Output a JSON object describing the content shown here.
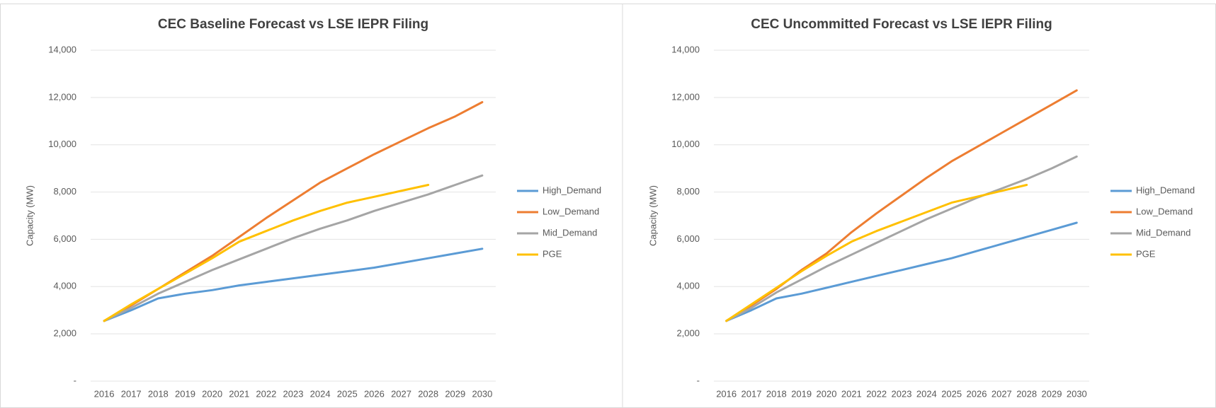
{
  "chart_data": [
    {
      "type": "line",
      "title": "CEC Baseline Forecast vs LSE IEPR Filing",
      "y_label": "Capacity (MW)",
      "categories": [
        "2016",
        "2017",
        "2018",
        "2019",
        "2020",
        "2021",
        "2022",
        "2023",
        "2024",
        "2025",
        "2026",
        "2027",
        "2028",
        "2029",
        "2030"
      ],
      "ylim": [
        0,
        14000
      ],
      "yticks": [
        {
          "value": 0,
          "label": "-"
        },
        {
          "value": 2000,
          "label": "2,000"
        },
        {
          "value": 4000,
          "label": "4,000"
        },
        {
          "value": 6000,
          "label": "6,000"
        },
        {
          "value": 8000,
          "label": "8,000"
        },
        {
          "value": 10000,
          "label": "10,000"
        },
        {
          "value": 12000,
          "label": "12,000"
        },
        {
          "value": 14000,
          "label": "14,000"
        }
      ],
      "grid": true,
      "legend": "right",
      "series": [
        {
          "name": "High_Demand",
          "color": "#5b9bd5",
          "values": [
            2550,
            3000,
            3500,
            3700,
            3850,
            4050,
            4200,
            4350,
            4500,
            4650,
            4800,
            5000,
            5200,
            5400,
            5600
          ]
        },
        {
          "name": "Low_Demand",
          "color": "#ed7d31",
          "values": [
            2550,
            3200,
            3900,
            4600,
            5300,
            6100,
            6900,
            7650,
            8400,
            9000,
            9600,
            10150,
            10700,
            11200,
            11800
          ]
        },
        {
          "name": "Mid_Demand",
          "color": "#a5a5a5",
          "values": [
            2550,
            3100,
            3700,
            4200,
            4700,
            5150,
            5600,
            6050,
            6450,
            6800,
            7200,
            7550,
            7900,
            8300,
            8700
          ]
        },
        {
          "name": "PGE",
          "color": "#ffc000",
          "values": [
            2550,
            3250,
            3900,
            4550,
            5200,
            5900,
            6350,
            6800,
            7200,
            7550,
            7800,
            8050,
            8300,
            null,
            null
          ]
        }
      ]
    },
    {
      "type": "line",
      "title": "CEC Uncommitted Forecast vs LSE IEPR Filing",
      "y_label": "Capacity (MW)",
      "categories": [
        "2016",
        "2017",
        "2018",
        "2019",
        "2020",
        "2021",
        "2022",
        "2023",
        "2024",
        "2025",
        "2026",
        "2027",
        "2028",
        "2029",
        "2030"
      ],
      "ylim": [
        0,
        14000
      ],
      "yticks": [
        {
          "value": 0,
          "label": "-"
        },
        {
          "value": 2000,
          "label": "2,000"
        },
        {
          "value": 4000,
          "label": "4,000"
        },
        {
          "value": 6000,
          "label": "6,000"
        },
        {
          "value": 8000,
          "label": "8,000"
        },
        {
          "value": 10000,
          "label": "10,000"
        },
        {
          "value": 12000,
          "label": "12,000"
        },
        {
          "value": 14000,
          "label": "14,000"
        }
      ],
      "grid": true,
      "legend": "right",
      "series": [
        {
          "name": "High_Demand",
          "color": "#5b9bd5",
          "values": [
            2550,
            3000,
            3500,
            3700,
            3950,
            4200,
            4450,
            4700,
            4950,
            5200,
            5500,
            5800,
            6100,
            6400,
            6700
          ]
        },
        {
          "name": "Low_Demand",
          "color": "#ed7d31",
          "values": [
            2550,
            3200,
            3900,
            4700,
            5400,
            6300,
            7100,
            7850,
            8600,
            9300,
            9900,
            10500,
            11100,
            11700,
            12300
          ]
        },
        {
          "name": "Mid_Demand",
          "color": "#a5a5a5",
          "values": [
            2550,
            3100,
            3750,
            4300,
            4850,
            5350,
            5850,
            6350,
            6850,
            7300,
            7750,
            8150,
            8550,
            9000,
            9500
          ]
        },
        {
          "name": "PGE",
          "color": "#ffc000",
          "values": [
            2550,
            3250,
            3950,
            4650,
            5300,
            5900,
            6350,
            6750,
            7150,
            7550,
            7800,
            8050,
            8300,
            null,
            null
          ]
        }
      ]
    }
  ]
}
